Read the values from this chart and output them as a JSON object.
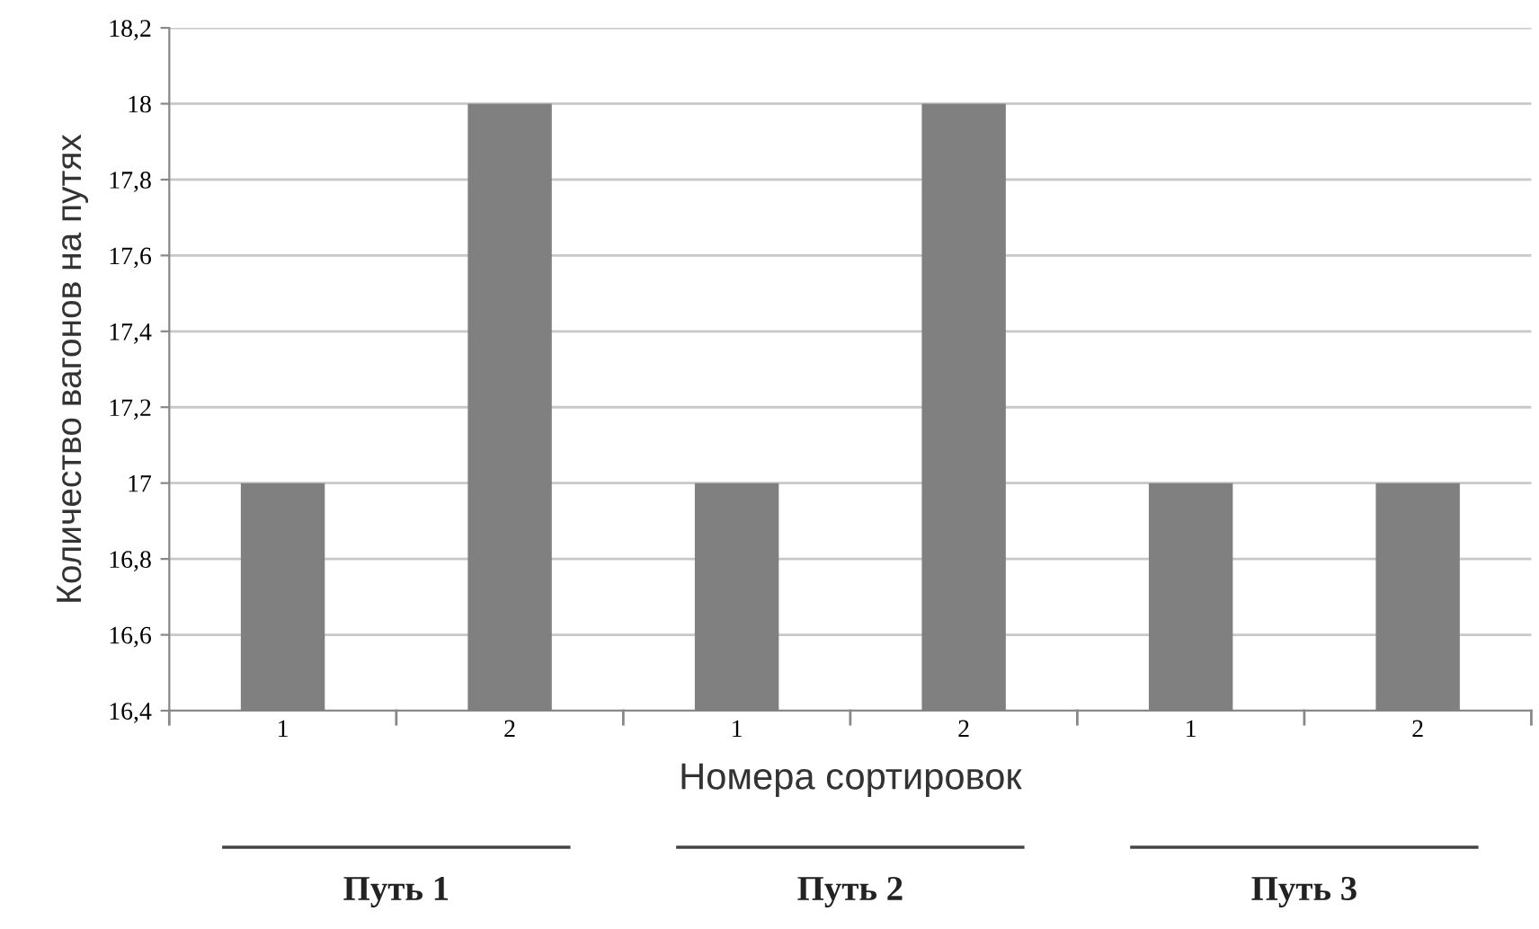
{
  "chart_data": {
    "type": "bar",
    "xlabel": "Номера сортировок",
    "ylabel": "Количество вагонов на путях",
    "categories": [
      "1",
      "2",
      "1",
      "2",
      "1",
      "2"
    ],
    "values": [
      17,
      18,
      17,
      18,
      17,
      17
    ],
    "color": "#808080",
    "ylim": [
      16.4,
      18.2
    ],
    "yticks": [
      {
        "value": 16.4,
        "label": "16,4"
      },
      {
        "value": 16.6,
        "label": "16,6"
      },
      {
        "value": 16.8,
        "label": "16,8"
      },
      {
        "value": 17,
        "label": "17"
      },
      {
        "value": 17.2,
        "label": "17,2"
      },
      {
        "value": 17.4,
        "label": "17,4"
      },
      {
        "value": 17.6,
        "label": "17,6"
      },
      {
        "value": 17.8,
        "label": "17,8"
      },
      {
        "value": 18,
        "label": "18"
      },
      {
        "value": 18.2,
        "label": "18,2"
      }
    ],
    "grid": "y",
    "annotations": [
      "Путь 1",
      "Путь 2",
      "Путь 3"
    ]
  }
}
